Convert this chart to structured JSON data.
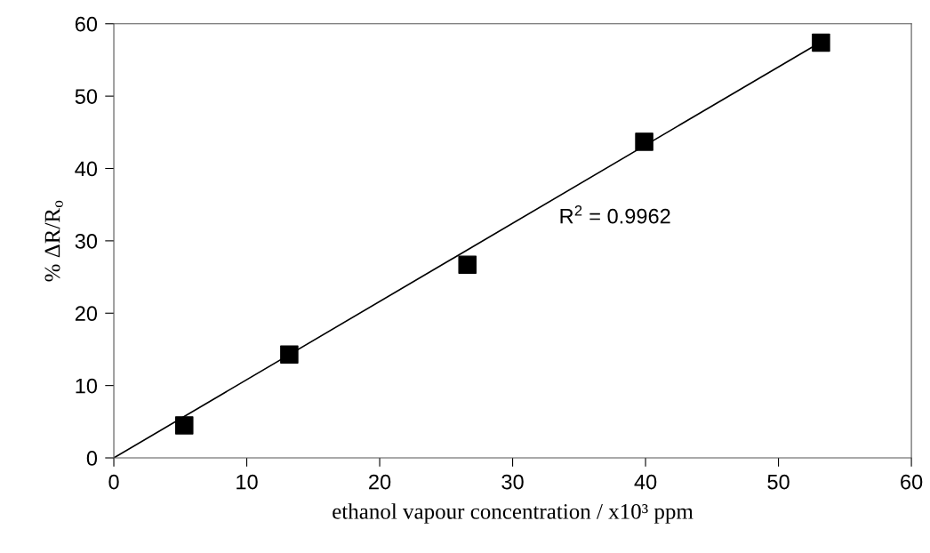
{
  "chart_data": {
    "type": "scatter",
    "xlabel": "ethanol vapour concentration / x10³ ppm",
    "ylabel": "% ΔR/R$_{o}$",
    "series": [
      {
        "color": "#000000",
        "marker": "square",
        "x": [
          5.3,
          13.2,
          26.6,
          39.9,
          53.2
        ],
        "values": [
          4.5,
          14.3,
          26.7,
          43.7,
          57.4
        ]
      },
      {
        "type": "line",
        "color": "#000000",
        "marker": "none",
        "line_style": "solid",
        "x": [
          0,
          53.2
        ],
        "values": [
          0,
          57.5
        ]
      }
    ],
    "annotations": [
      "R$^{2}$ = 0.9962"
    ],
    "xlim": [
      0,
      60
    ],
    "ylim": [
      0,
      60
    ],
    "xticks": [
      0,
      10,
      20,
      30,
      40,
      50,
      60
    ],
    "yticks": [
      0,
      10,
      20,
      30,
      40,
      50,
      60
    ],
    "grid": false,
    "legend": false
  }
}
